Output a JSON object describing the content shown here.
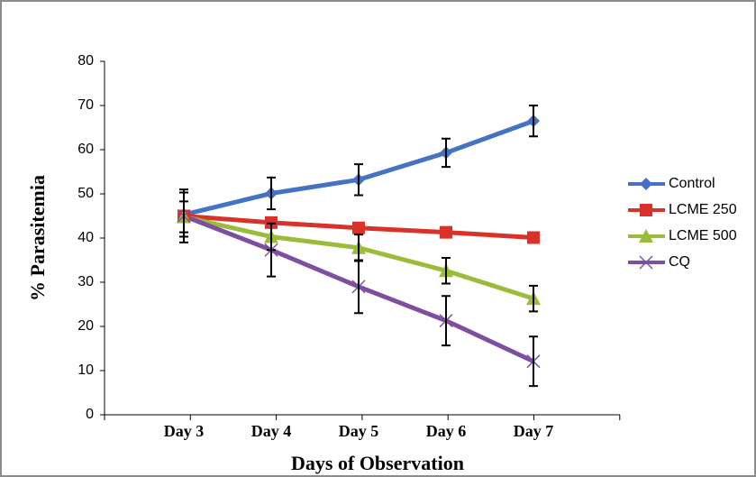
{
  "chart_data": {
    "type": "line",
    "x_label": "Days of Observation",
    "y_label": "% Parasitemia",
    "categories": [
      "Day 3",
      "Day 4",
      "Day 5",
      "Day 6",
      "Day 7"
    ],
    "ylim": [
      0,
      80
    ],
    "yticks": [
      0,
      10,
      20,
      30,
      40,
      50,
      60,
      70,
      80
    ],
    "legend": "right",
    "series": [
      {
        "name": "Control",
        "color": "#4472c4",
        "marker": "diamond",
        "values": [
          45.3,
          50.1,
          53.2,
          59.3,
          66.5
        ],
        "errors": [
          5,
          3.6,
          3.5,
          3.2,
          3.5
        ]
      },
      {
        "name": "LCME 250",
        "color": "#d9322a",
        "marker": "square",
        "values": [
          45,
          43.5,
          42.3,
          41.3,
          40.1
        ]
      },
      {
        "name": "LCME 500",
        "color": "#9bbb3b",
        "marker": "triangle",
        "values": [
          44.8,
          40.3,
          37.8,
          32.6,
          26.3
        ],
        "errors": [
          3.5,
          3,
          3,
          2.9,
          2.9
        ]
      },
      {
        "name": "CQ",
        "color": "#7e4fa0",
        "marker": "x",
        "values": [
          45,
          37.3,
          29,
          21.3,
          12.1
        ],
        "errors": [
          6,
          6,
          6,
          5.6,
          5.6
        ]
      }
    ]
  }
}
